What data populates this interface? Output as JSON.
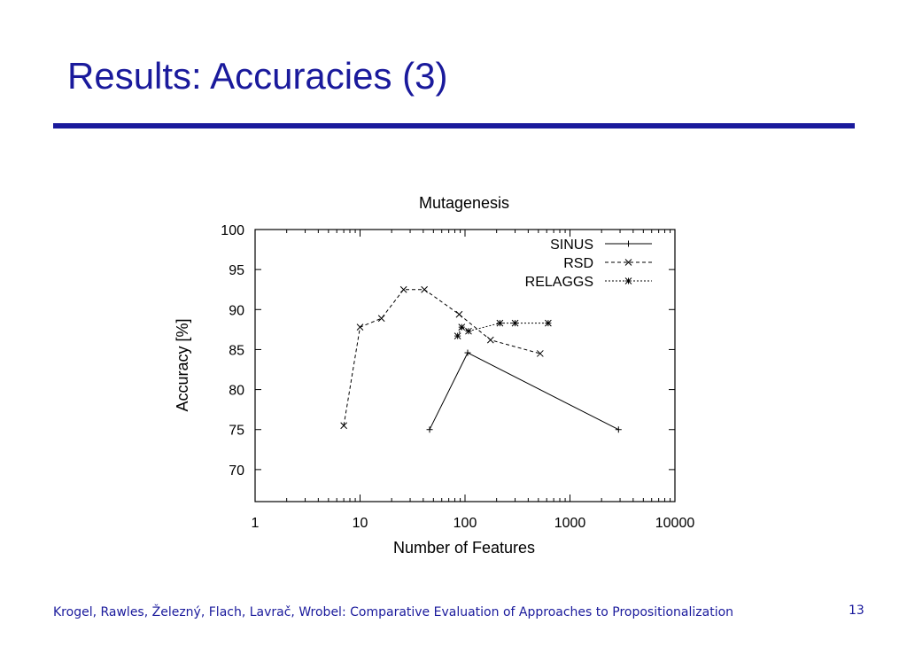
{
  "slide": {
    "title": "Results: Accuracies (3)",
    "footer": "Krogel, Rawles, Železný, Flach, Lavrač, Wrobel: Comparative Evaluation of Approaches to Propositionalization",
    "page_number": "13",
    "title_color": "#1a1a9c"
  },
  "chart_data": {
    "type": "line",
    "title": "Mutagenesis",
    "xlabel": "Number of Features",
    "ylabel": "Accuracy [%]",
    "xscale": "log",
    "xlim": [
      1,
      10000
    ],
    "ylim": [
      66,
      100
    ],
    "xticks": [
      1,
      10,
      100,
      1000,
      10000
    ],
    "xtick_labels": [
      "1",
      "10",
      "100",
      "1000",
      "10000"
    ],
    "yticks": [
      70,
      75,
      80,
      85,
      90,
      95,
      100
    ],
    "ytick_labels": [
      "70",
      "75",
      "80",
      "85",
      "90",
      "95",
      "100"
    ],
    "grid": false,
    "legend_position": "top-right",
    "series": [
      {
        "name": "SINUS",
        "marker": "plus",
        "line": "solid",
        "points": [
          [
            46,
            75.0
          ],
          [
            106,
            84.6
          ],
          [
            2900,
            75.0
          ]
        ]
      },
      {
        "name": "RSD",
        "marker": "x",
        "line": "dashed",
        "points": [
          [
            7,
            75.5
          ],
          [
            10,
            87.8
          ],
          [
            16,
            88.9
          ],
          [
            26,
            92.5
          ],
          [
            41,
            92.5
          ],
          [
            88,
            89.4
          ],
          [
            175,
            86.2
          ],
          [
            520,
            84.5
          ]
        ]
      },
      {
        "name": "RELAGGS",
        "marker": "star",
        "line": "dotted",
        "points": [
          [
            85,
            86.7
          ],
          [
            93,
            87.8
          ],
          [
            108,
            87.3
          ],
          [
            215,
            88.3
          ],
          [
            300,
            88.3
          ],
          [
            620,
            88.3
          ]
        ]
      }
    ]
  }
}
